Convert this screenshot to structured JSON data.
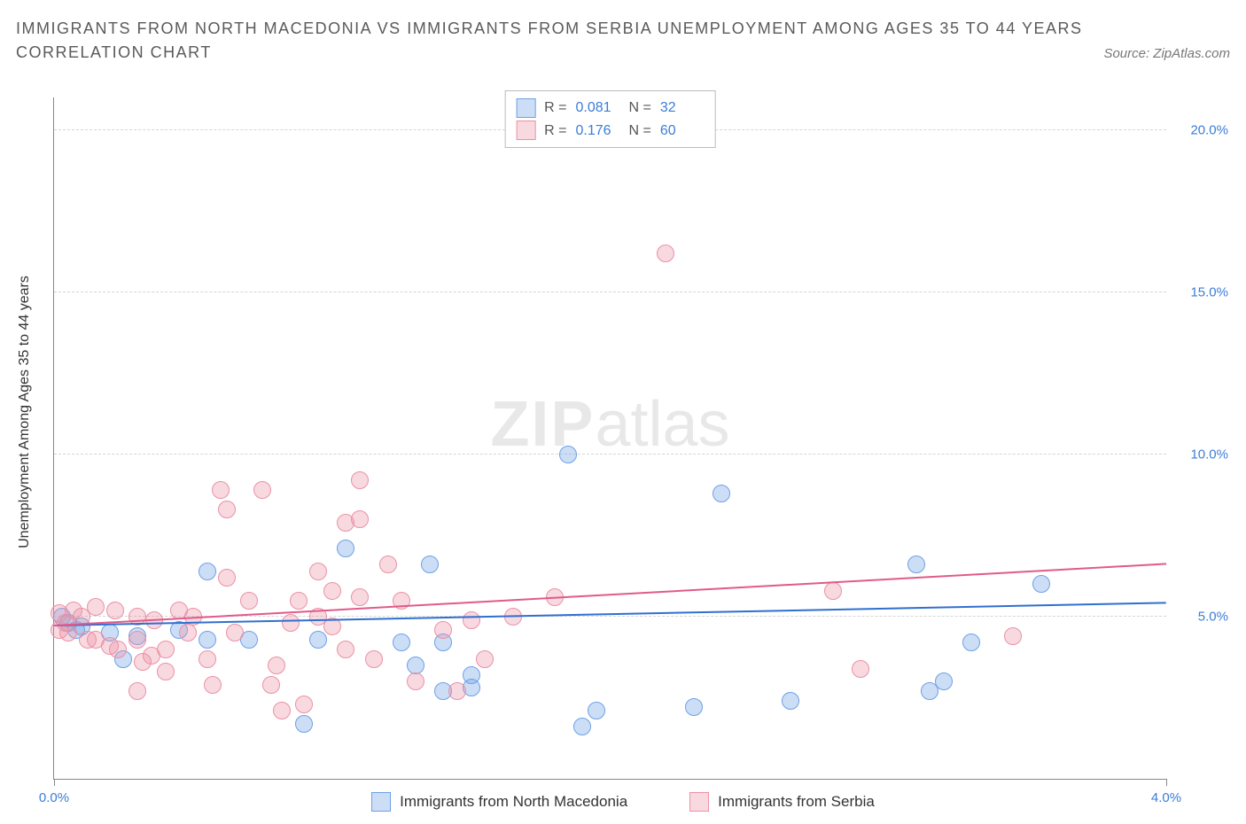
{
  "title": "IMMIGRANTS FROM NORTH MACEDONIA VS IMMIGRANTS FROM SERBIA UNEMPLOYMENT AMONG AGES 35 TO 44 YEARS",
  "subtitle": "CORRELATION CHART",
  "source": "Source: ZipAtlas.com",
  "y_axis_title": "Unemployment Among Ages 35 to 44 years",
  "watermark_bold": "ZIP",
  "watermark_light": "atlas",
  "chart": {
    "type": "scatter",
    "xlim": [
      0.0,
      4.0
    ],
    "ylim": [
      0.0,
      21.0
    ],
    "x_ticks": [
      0.0,
      4.0
    ],
    "x_tick_labels": [
      "0.0%",
      "4.0%"
    ],
    "y_ticks": [
      5.0,
      10.0,
      15.0,
      20.0
    ],
    "y_tick_labels": [
      "5.0%",
      "10.0%",
      "15.0%",
      "20.0%"
    ],
    "background": "#ffffff",
    "grid_color": "#d5d5d5",
    "axis_color": "#888888",
    "label_color": "#3b7dd8",
    "label_fontsize": 15
  },
  "series": [
    {
      "name": "Immigrants from North Macedonia",
      "fill": "rgba(110,160,230,0.35)",
      "stroke": "#6ea0e6",
      "line_color": "#2f6fd0",
      "marker_radius": 10,
      "R": "0.081",
      "N": "32",
      "trend": {
        "x1": 0.0,
        "y1": 4.7,
        "x2": 4.0,
        "y2": 5.4
      },
      "points": [
        [
          0.03,
          5.0
        ],
        [
          0.05,
          4.8
        ],
        [
          0.08,
          4.6
        ],
        [
          0.1,
          4.7
        ],
        [
          0.2,
          4.5
        ],
        [
          0.25,
          3.7
        ],
        [
          0.3,
          4.4
        ],
        [
          0.55,
          6.4
        ],
        [
          0.55,
          4.3
        ],
        [
          0.7,
          4.3
        ],
        [
          0.9,
          1.7
        ],
        [
          0.95,
          4.3
        ],
        [
          1.05,
          7.1
        ],
        [
          1.25,
          4.2
        ],
        [
          1.35,
          6.6
        ],
        [
          1.3,
          3.5
        ],
        [
          1.4,
          4.2
        ],
        [
          1.4,
          2.7
        ],
        [
          1.5,
          3.2
        ],
        [
          1.5,
          2.8
        ],
        [
          1.85,
          10.0
        ],
        [
          1.95,
          2.1
        ],
        [
          1.9,
          1.6
        ],
        [
          2.3,
          2.2
        ],
        [
          2.4,
          8.8
        ],
        [
          2.65,
          2.4
        ],
        [
          3.1,
          6.6
        ],
        [
          3.15,
          2.7
        ],
        [
          3.2,
          3.0
        ],
        [
          3.3,
          4.2
        ],
        [
          3.55,
          6.0
        ],
        [
          0.45,
          4.6
        ]
      ]
    },
    {
      "name": "Immigrants from Serbia",
      "fill": "rgba(235,145,165,0.35)",
      "stroke": "#eb91a5",
      "line_color": "#e05b8a",
      "marker_radius": 10,
      "R": "0.176",
      "N": "60",
      "trend": {
        "x1": 0.0,
        "y1": 4.7,
        "x2": 4.0,
        "y2": 6.6
      },
      "points": [
        [
          0.02,
          5.1
        ],
        [
          0.02,
          4.6
        ],
        [
          0.04,
          4.8
        ],
        [
          0.05,
          4.5
        ],
        [
          0.07,
          5.2
        ],
        [
          0.1,
          5.0
        ],
        [
          0.12,
          4.3
        ],
        [
          0.15,
          5.3
        ],
        [
          0.15,
          4.3
        ],
        [
          0.2,
          4.1
        ],
        [
          0.22,
          5.2
        ],
        [
          0.23,
          4.0
        ],
        [
          0.3,
          5.0
        ],
        [
          0.3,
          4.3
        ],
        [
          0.3,
          2.7
        ],
        [
          0.32,
          3.6
        ],
        [
          0.35,
          3.8
        ],
        [
          0.36,
          4.9
        ],
        [
          0.4,
          4.0
        ],
        [
          0.4,
          3.3
        ],
        [
          0.45,
          5.2
        ],
        [
          0.48,
          4.5
        ],
        [
          0.5,
          5.0
        ],
        [
          0.55,
          3.7
        ],
        [
          0.57,
          2.9
        ],
        [
          0.6,
          8.9
        ],
        [
          0.62,
          8.3
        ],
        [
          0.62,
          6.2
        ],
        [
          0.65,
          4.5
        ],
        [
          0.7,
          5.5
        ],
        [
          0.75,
          8.9
        ],
        [
          0.78,
          2.9
        ],
        [
          0.8,
          3.5
        ],
        [
          0.82,
          2.1
        ],
        [
          0.85,
          4.8
        ],
        [
          0.88,
          5.5
        ],
        [
          0.9,
          2.3
        ],
        [
          0.95,
          6.4
        ],
        [
          0.95,
          5.0
        ],
        [
          1.0,
          4.7
        ],
        [
          1.0,
          5.8
        ],
        [
          1.05,
          7.9
        ],
        [
          1.05,
          4.0
        ],
        [
          1.1,
          8.0
        ],
        [
          1.1,
          9.2
        ],
        [
          1.1,
          5.6
        ],
        [
          1.15,
          3.7
        ],
        [
          1.2,
          6.6
        ],
        [
          1.25,
          5.5
        ],
        [
          1.3,
          3.0
        ],
        [
          1.4,
          4.6
        ],
        [
          1.45,
          2.7
        ],
        [
          1.5,
          4.9
        ],
        [
          1.55,
          3.7
        ],
        [
          1.65,
          5.0
        ],
        [
          1.8,
          5.6
        ],
        [
          2.2,
          16.2
        ],
        [
          2.8,
          5.8
        ],
        [
          2.9,
          3.4
        ],
        [
          3.45,
          4.4
        ]
      ]
    }
  ],
  "stats_labels": {
    "R": "R =",
    "N": "N ="
  },
  "legend": {
    "items": [
      {
        "label": "Immigrants from North Macedonia",
        "fill": "rgba(110,160,230,0.35)",
        "stroke": "#6ea0e6"
      },
      {
        "label": "Immigrants from Serbia",
        "fill": "rgba(235,145,165,0.35)",
        "stroke": "#eb91a5"
      }
    ]
  }
}
